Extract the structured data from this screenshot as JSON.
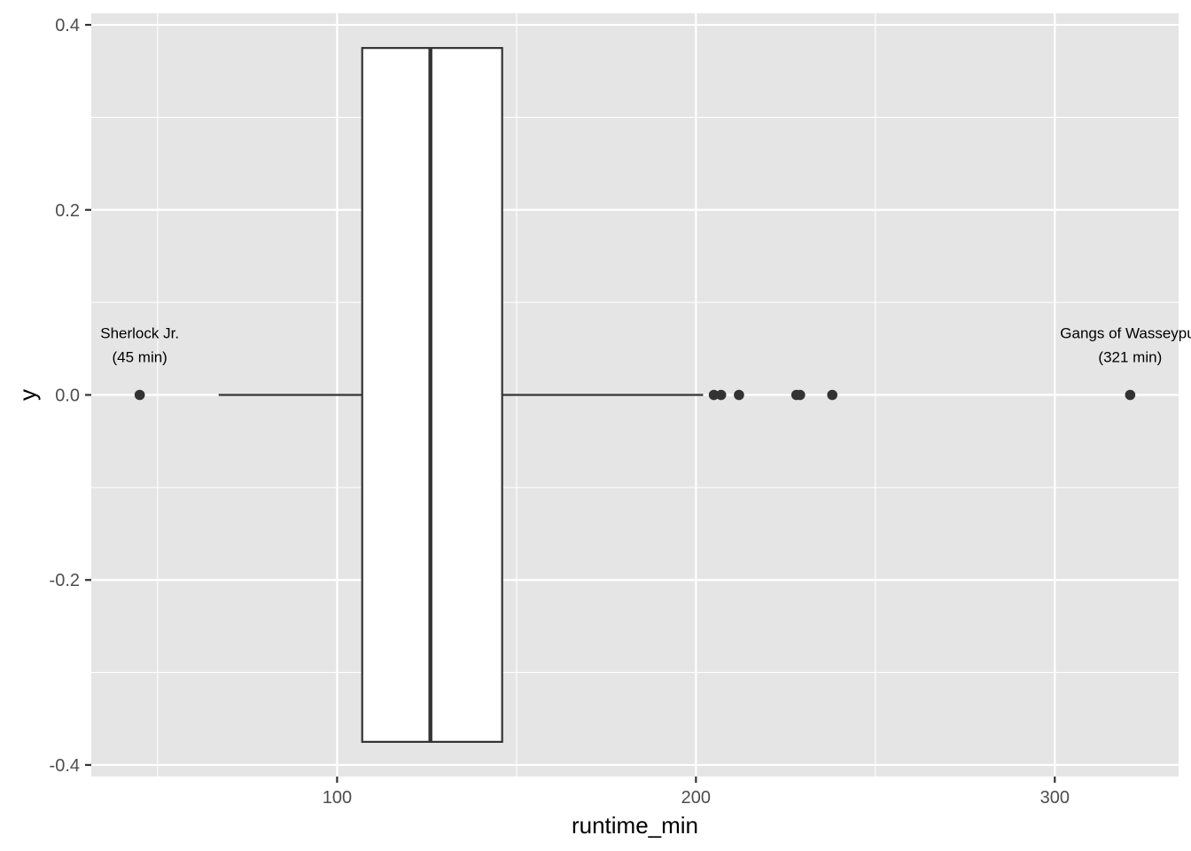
{
  "chart_data": {
    "type": "boxplot",
    "title": "",
    "xlabel": "runtime_min",
    "ylabel": "y",
    "xlim": [
      31.5,
      334.5
    ],
    "ylim": [
      -0.4125,
      0.4125
    ],
    "x_ticks": [
      100,
      200,
      300
    ],
    "x_minor_ticks": [
      50,
      150,
      250
    ],
    "y_ticks": [
      -0.4,
      -0.2,
      0.0,
      0.2,
      0.4
    ],
    "y_tick_labels": [
      "-0.4",
      "-0.2",
      "0.0",
      "0.2",
      "0.4"
    ],
    "y_minor_ticks": [
      -0.3,
      -0.1,
      0.1,
      0.3
    ],
    "grid": true,
    "box": {
      "y": 0.0,
      "half_height": 0.375,
      "whisker_low": 67,
      "q1": 107,
      "median": 126,
      "q3": 146,
      "whisker_high": 202
    },
    "outliers": [
      45,
      205,
      207,
      212,
      228,
      229,
      238,
      321
    ],
    "annotations": [
      {
        "x": 45,
        "y": 0.0,
        "lines": [
          "Sherlock Jr.",
          "(45 min)"
        ]
      },
      {
        "x": 321,
        "y": 0.0,
        "lines": [
          "Gangs of Wasseypur",
          "(321 min)"
        ]
      }
    ],
    "colors": {
      "panel": "#e5e5e5",
      "grid": "#ffffff",
      "box_fill": "#ffffff",
      "line": "#333333",
      "point": "#333333",
      "tick_text": "#4d4d4d",
      "tick_mark": "#333333"
    }
  }
}
